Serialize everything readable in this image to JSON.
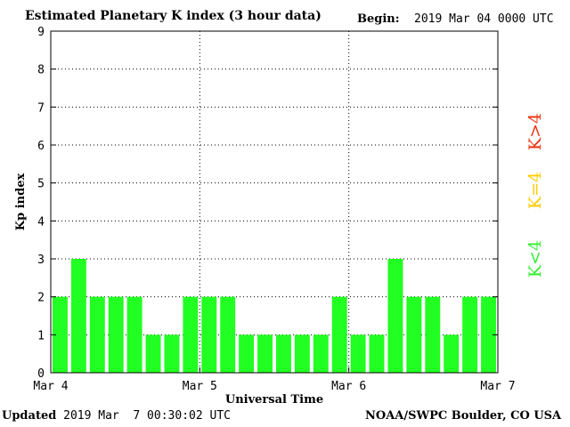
{
  "header": {
    "title": "Estimated Planetary K index (3 hour data)",
    "begin_label": "Begin:",
    "begin_value": "2019 Mar 04 0000 UTC"
  },
  "footer": {
    "updated_label": "Updated",
    "updated_value": "2019 Mar  7 00:30:02 UTC",
    "source": "NOAA/SWPC Boulder, CO USA"
  },
  "colors": {
    "bar": "#22ff22",
    "k_below_4": "#33ee33",
    "k_equal_4": "#ffcc00",
    "k_above_4": "#ee3311"
  },
  "legend": {
    "k_below_4": "K<4",
    "k_equal_4": "K=4",
    "k_above_4": "K>4"
  },
  "chart_data": {
    "type": "bar",
    "title": "Estimated Planetary K index (3 hour data)",
    "xlabel": "Universal Time",
    "ylabel": "Kp index",
    "ylim": [
      0,
      9
    ],
    "yticks": [
      0,
      1,
      2,
      3,
      4,
      5,
      6,
      7,
      8,
      9
    ],
    "xticks": [
      "Mar 4",
      "Mar 5",
      "Mar 6",
      "Mar 7"
    ],
    "grid": true,
    "bins_per_day": 8,
    "values": [
      2,
      3,
      2,
      2,
      2,
      1,
      1,
      2,
      2,
      2,
      1,
      1,
      1,
      1,
      1,
      2,
      1,
      1,
      3,
      2,
      2,
      1,
      2,
      2
    ]
  }
}
